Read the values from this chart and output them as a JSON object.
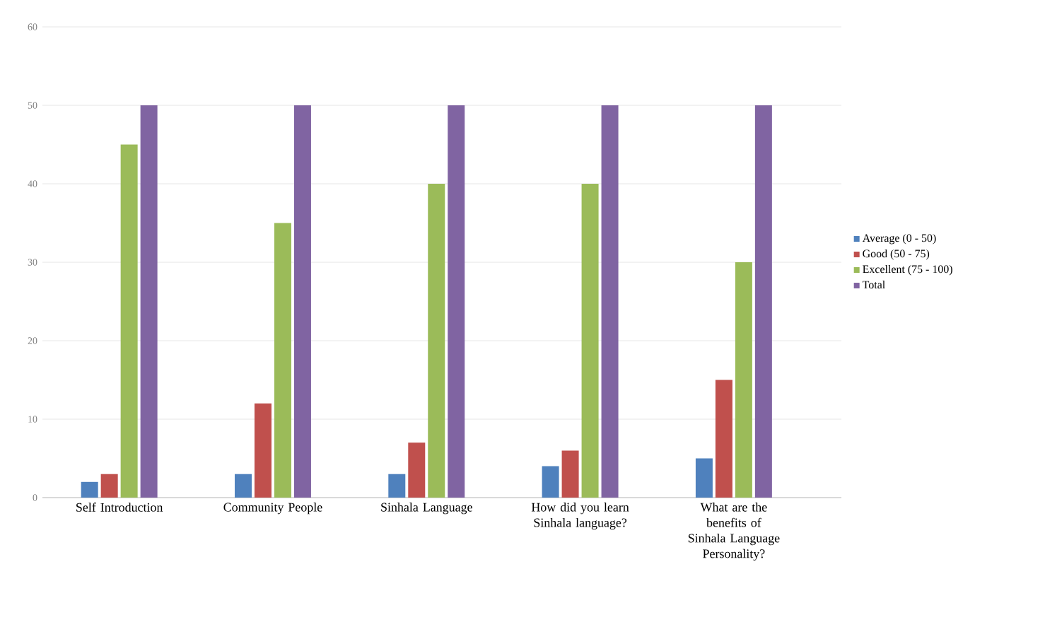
{
  "chart_data": {
    "type": "bar",
    "categories": [
      "Self Introduction",
      "Community People",
      "Sinhala Language",
      "How did you learn Sinhala language?",
      "What are the benefits of Sinhala Language Personality?"
    ],
    "series": [
      {
        "name": "Average (0 - 50)",
        "color": "#4f81bd",
        "values": [
          2,
          3,
          3,
          4,
          5
        ]
      },
      {
        "name": "Good (50 - 75)",
        "color": "#c0504d",
        "values": [
          3,
          12,
          7,
          6,
          15
        ]
      },
      {
        "name": "Excellent (75 - 100)",
        "color": "#9bbb59",
        "values": [
          45,
          35,
          40,
          40,
          30
        ]
      },
      {
        "name": "Total",
        "color": "#8064a2",
        "values": [
          50,
          50,
          50,
          50,
          50
        ]
      }
    ],
    "ylim": [
      0,
      60
    ],
    "yticks": [
      0,
      10,
      20,
      30,
      40,
      50,
      60
    ],
    "grid": "y",
    "legend": "right"
  }
}
